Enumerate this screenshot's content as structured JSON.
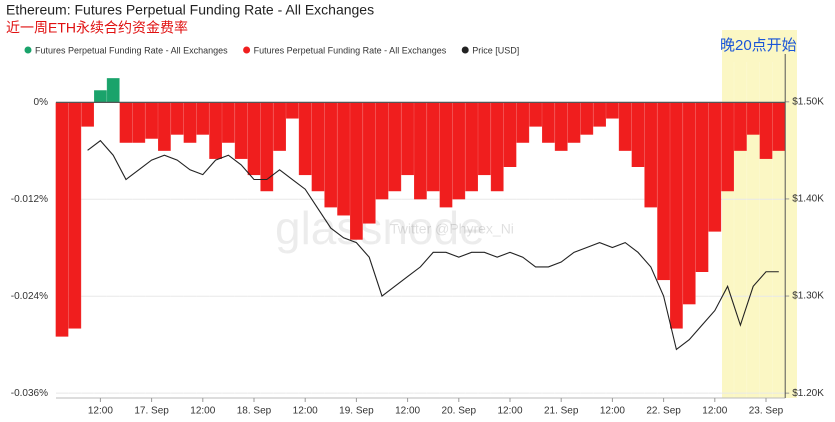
{
  "chart_data": {
    "type": "bar-line",
    "title": "Ethereum: Futures Perpetual Funding Rate - All Exchanges",
    "subtitle": "近一周ETH永续合约资金费率",
    "annotation": "晚20点开始",
    "watermark": "glassnode",
    "watermark_credit": "Twitter @Phyrex_Ni",
    "categories": [
      null,
      null,
      null,
      "12:00",
      null,
      null,
      null,
      "17. Sep",
      null,
      null,
      null,
      "12:00",
      null,
      null,
      null,
      "18. Sep",
      null,
      null,
      null,
      "12:00",
      null,
      null,
      null,
      "19. Sep",
      null,
      null,
      null,
      "12:00",
      null,
      null,
      null,
      "20. Sep",
      null,
      null,
      null,
      "12:00",
      null,
      null,
      null,
      "21. Sep",
      null,
      null,
      null,
      "12:00",
      null,
      null,
      null,
      "22. Sep",
      null,
      null,
      null,
      "12:00",
      null,
      null,
      null,
      "23. Sep",
      null
    ],
    "ylim": [
      -0.0366,
      0.005
    ],
    "yticks": [
      {
        "value": 0,
        "label": "0%"
      },
      {
        "value": -0.012,
        "label": "-0.012%"
      },
      {
        "value": -0.024,
        "label": "-0.024%"
      },
      {
        "value": -0.036,
        "label": "-0.036%"
      }
    ],
    "y2lim": [
      1195,
      1541
    ],
    "y2ticks": [
      {
        "value": 1500,
        "label": "$1.50K"
      },
      {
        "value": 1400,
        "label": "$1.40K"
      },
      {
        "value": 1300,
        "label": "$1.30K"
      },
      {
        "value": 1200,
        "label": "$1.20K"
      }
    ],
    "grid": true,
    "series": [
      {
        "name": "Futures Perpetual Funding Rate - All Exchanges",
        "color": "#1aa36b",
        "values": [
          null,
          null,
          null,
          0.0015,
          0.003,
          null,
          null,
          null,
          null,
          null,
          null,
          null,
          null,
          null,
          null,
          null,
          null,
          null,
          null,
          null,
          null,
          null,
          null,
          null,
          null,
          null,
          null,
          null,
          null,
          null,
          null,
          null,
          null,
          null,
          null,
          null,
          null,
          null,
          null,
          null,
          null,
          null,
          null,
          null,
          null,
          null,
          null,
          null,
          null,
          null,
          null,
          null,
          null,
          null,
          null,
          null,
          null
        ]
      },
      {
        "name": "Futures Perpetual Funding Rate - All Exchanges",
        "color": "#f01e1e",
        "values": [
          -0.029,
          -0.028,
          -0.003,
          null,
          null,
          -0.005,
          -0.005,
          -0.0045,
          -0.006,
          -0.004,
          -0.005,
          -0.004,
          -0.007,
          -0.005,
          -0.007,
          -0.009,
          -0.011,
          -0.006,
          -0.002,
          -0.009,
          -0.011,
          -0.013,
          -0.014,
          -0.017,
          -0.015,
          -0.012,
          -0.011,
          -0.009,
          -0.012,
          -0.011,
          -0.013,
          -0.012,
          -0.011,
          -0.009,
          -0.011,
          -0.008,
          -0.005,
          -0.003,
          -0.005,
          -0.006,
          -0.005,
          -0.004,
          -0.003,
          -0.002,
          -0.006,
          -0.008,
          -0.013,
          -0.022,
          -0.028,
          -0.025,
          -0.021,
          -0.016,
          -0.011,
          -0.006,
          -0.004,
          -0.007,
          -0.006
        ]
      },
      {
        "name": "Price [USD]",
        "color": "#222222",
        "axis": "y2",
        "values": [
          null,
          null,
          1450,
          1460,
          1445,
          1420,
          1430,
          1440,
          1445,
          1440,
          1430,
          1425,
          1440,
          1445,
          1435,
          1420,
          1420,
          1430,
          1420,
          1410,
          1390,
          1370,
          1360,
          1355,
          1340,
          1300,
          1310,
          1320,
          1330,
          1345,
          1345,
          1340,
          1345,
          1345,
          1340,
          1345,
          1340,
          1330,
          1330,
          1335,
          1345,
          1350,
          1355,
          1350,
          1355,
          1345,
          1330,
          1300,
          1245,
          1255,
          1270,
          1285,
          1310,
          1270,
          1310,
          1325,
          1325
        ]
      }
    ]
  }
}
